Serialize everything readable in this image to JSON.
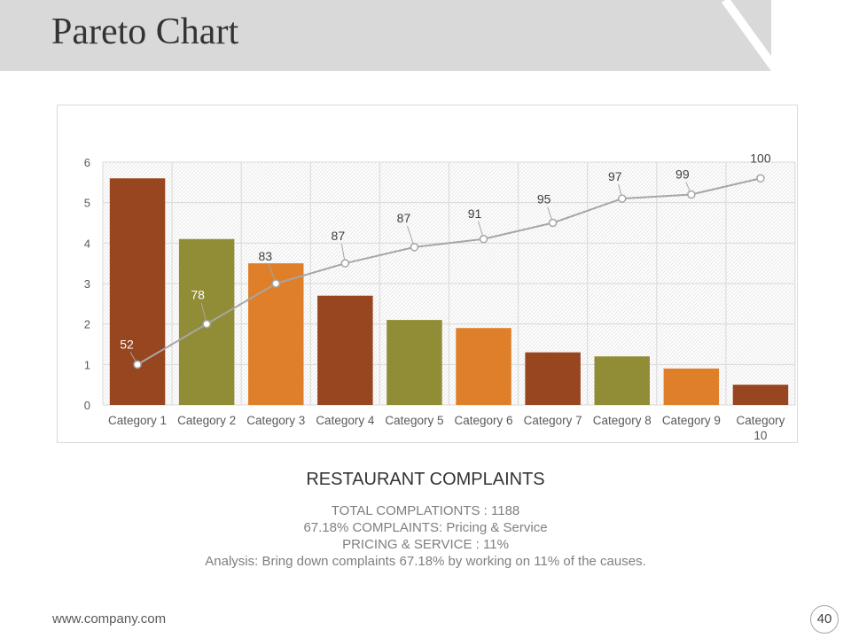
{
  "slide": {
    "title": "Pareto Chart",
    "footer_url": "www.company.com",
    "page_number": "40"
  },
  "summary": {
    "title": "RESTAURANT COMPLAINTS",
    "lines": [
      "TOTAL COMPLATIONTS : 1188",
      "67.18% COMPLAINTS: Pricing & Service",
      "PRICING & SERVICE : 11%",
      "Analysis: Bring down complaints 67.18% by working on 11% of the causes."
    ]
  },
  "colors": {
    "header_band": "#d9d9d9",
    "rust": "#97461f",
    "olive": "#918d36",
    "orange": "#df7f29",
    "line": "#a6a6a6"
  },
  "chart_data": {
    "type": "bar",
    "categories": [
      "Category 1",
      "Category 2",
      "Category 3",
      "Category 4",
      "Category 5",
      "Category 6",
      "Category 7",
      "Category 8",
      "Category 9",
      "Category 10"
    ],
    "values": [
      5.6,
      4.1,
      3.5,
      2.7,
      2.1,
      1.9,
      1.3,
      1.2,
      0.9,
      0.5
    ],
    "bar_colors": [
      "#97461f",
      "#918d36",
      "#df7f29",
      "#97461f",
      "#918d36",
      "#df7f29",
      "#97461f",
      "#918d36",
      "#df7f29",
      "#97461f"
    ],
    "ylim": [
      0,
      6
    ],
    "yticks": [
      0,
      1,
      2,
      3,
      4,
      5,
      6
    ],
    "grid": true,
    "overlay_line": {
      "type": "line",
      "positions": [
        1,
        2,
        3,
        3.5,
        3.9,
        4.1,
        4.5,
        5.1,
        5.2,
        5.6
      ],
      "labels": [
        "52",
        "78",
        "83",
        "87",
        "87",
        "91",
        "95",
        "97",
        "99",
        "100"
      ]
    }
  }
}
